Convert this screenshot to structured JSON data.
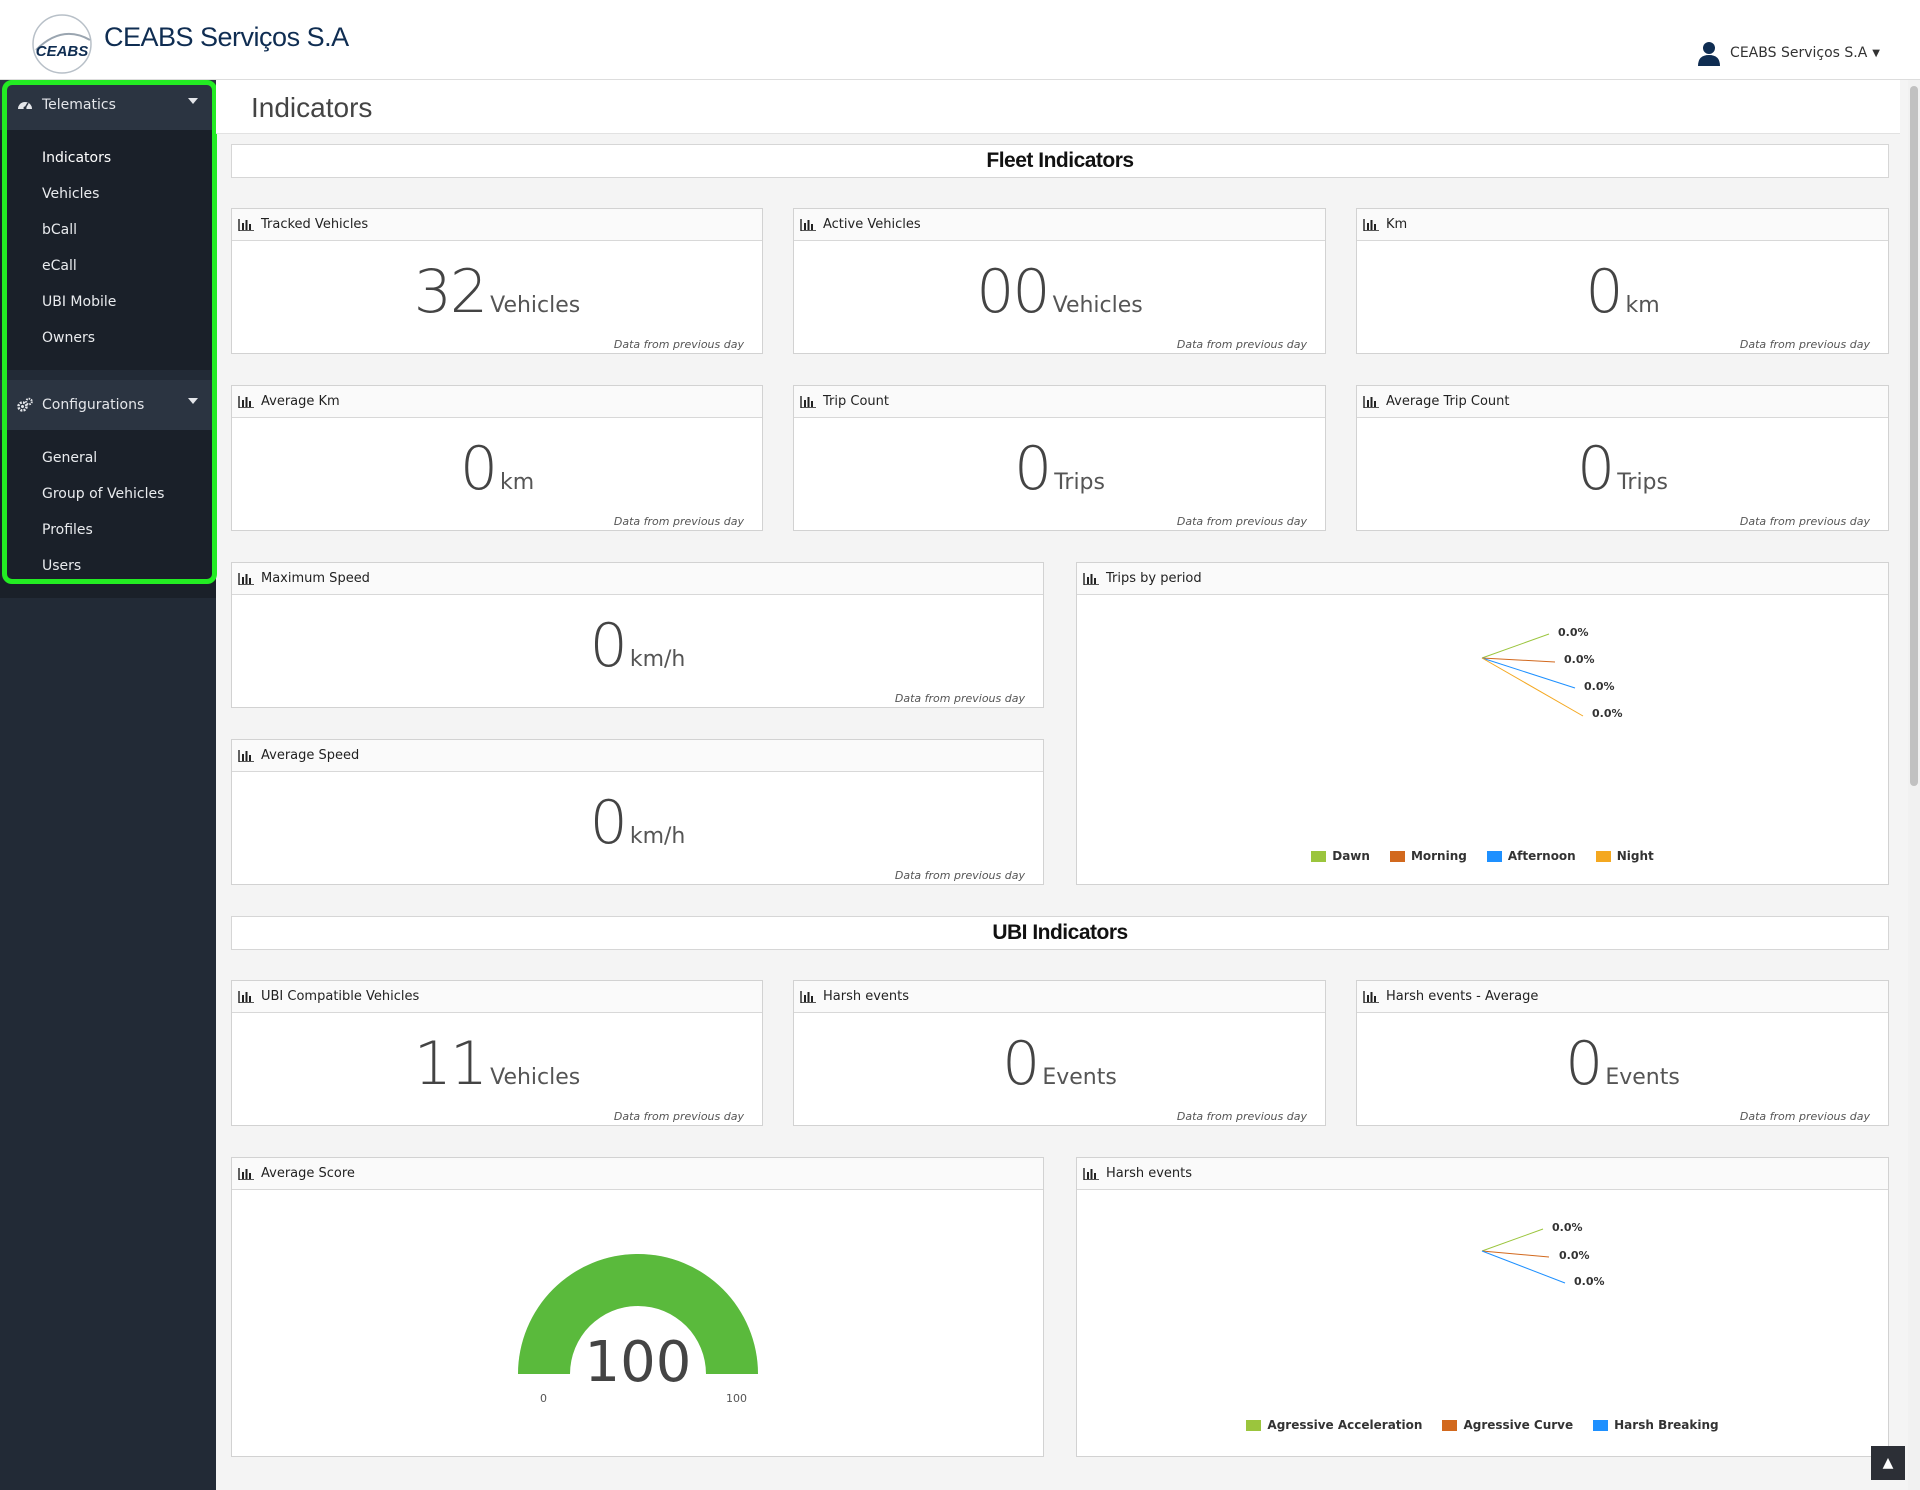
{
  "header": {
    "brand": "CEABS Serviços S.A",
    "logo_text": "CEABS",
    "user_name": "CEABS Serviços S.A"
  },
  "sidebar": {
    "sections": [
      {
        "label": "Telematics",
        "icon": "dashboard-icon",
        "items": [
          "Indicators",
          "Vehicles",
          "bCall",
          "eCall",
          "UBI Mobile",
          "Owners"
        ]
      },
      {
        "label": "Configurations",
        "icon": "cogs-icon",
        "items": [
          "General",
          "Group of Vehicles",
          "Profiles",
          "Users"
        ]
      }
    ]
  },
  "page": {
    "title": "Indicators"
  },
  "fleet": {
    "section_title": "Fleet Indicators",
    "footnote": "Data from previous day",
    "tracked": {
      "title": "Tracked Vehicles",
      "value": "32",
      "unit": "Vehicles"
    },
    "active": {
      "title": "Active Vehicles",
      "value": "00",
      "unit": "Vehicles"
    },
    "km": {
      "title": "Km",
      "value": "0",
      "unit": "km"
    },
    "avg_km": {
      "title": "Average Km",
      "value": "0",
      "unit": "km"
    },
    "trip_count": {
      "title": "Trip Count",
      "value": "0",
      "unit": "Trips"
    },
    "avg_trip_count": {
      "title": "Average Trip Count",
      "value": "0",
      "unit": "Trips"
    },
    "max_speed": {
      "title": "Maximum Speed",
      "value": "0",
      "unit": "km/h"
    },
    "avg_speed": {
      "title": "Average Speed",
      "value": "0",
      "unit": "km/h"
    },
    "trips_by_period": {
      "title": "Trips by period",
      "labels": [
        "0.0%",
        "0.0%",
        "0.0%",
        "0.0%"
      ],
      "legend": [
        "Dawn",
        "Morning",
        "Afternoon",
        "Night"
      ],
      "colors": [
        "#9bc53d",
        "#d2691e",
        "#1e90ff",
        "#f4a820"
      ]
    }
  },
  "ubi": {
    "section_title": "UBI Indicators",
    "compatible": {
      "title": "UBI Compatible Vehicles",
      "value": "11",
      "unit": "Vehicles"
    },
    "harsh": {
      "title": "Harsh events",
      "value": "0",
      "unit": "Events"
    },
    "harsh_avg": {
      "title": "Harsh events - Average",
      "value": "0",
      "unit": "Events"
    },
    "avg_score": {
      "title": "Average Score",
      "value": "100",
      "min": "0",
      "max": "100",
      "fraction": 1.0,
      "color": "#5aba3c"
    },
    "harsh_chart": {
      "title": "Harsh events",
      "labels": [
        "0.0%",
        "0.0%",
        "0.0%"
      ],
      "legend": [
        "Agressive Acceleration",
        "Agressive Curve",
        "Harsh Breaking"
      ],
      "colors": [
        "#9bc53d",
        "#d2691e",
        "#1e90ff"
      ]
    }
  }
}
